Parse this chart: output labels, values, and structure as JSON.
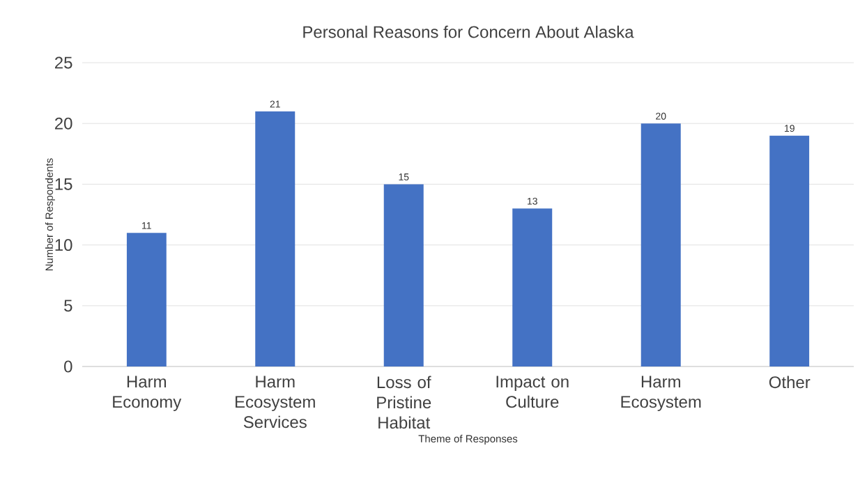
{
  "chart_data": {
    "type": "bar",
    "title": "Personal Reasons for Concern About Alaska",
    "xlabel": "Theme of Responses",
    "ylabel": "Number of Respondents",
    "categories": [
      "Harm Economy",
      "Harm Ecosystem Services",
      "Loss of Pristine Habitat",
      "Impact on Culture",
      "Harm Ecosystem",
      "Other"
    ],
    "values": [
      11,
      21,
      15,
      13,
      20,
      19
    ],
    "color": "#4472c4",
    "ylim": [
      0,
      25
    ],
    "yticks": [
      0,
      5,
      10,
      15,
      20,
      25
    ],
    "grid": "y",
    "data_labels": true
  }
}
